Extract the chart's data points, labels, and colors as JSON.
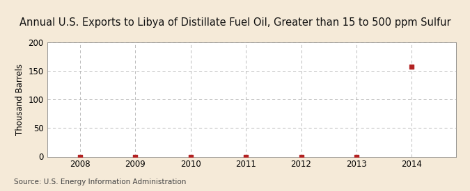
{
  "title": "Annual U.S. Exports to Libya of Distillate Fuel Oil, Greater than 15 to 500 ppm Sulfur",
  "ylabel": "Thousand Barrels",
  "source": "Source: U.S. Energy Information Administration",
  "years": [
    2008,
    2009,
    2010,
    2011,
    2012,
    2013,
    2014
  ],
  "values": [
    0,
    0,
    0,
    0,
    0,
    0,
    157
  ],
  "point_color": "#b22222",
  "ylim": [
    0,
    200
  ],
  "yticks": [
    0,
    50,
    100,
    150,
    200
  ],
  "xlim": [
    2007.4,
    2014.8
  ],
  "bg_color": "#f5ead8",
  "plot_bg_color": "#ffffff",
  "grid_color": "#b0b0b0",
  "title_fontsize": 10.5,
  "label_fontsize": 8.5,
  "tick_fontsize": 8.5,
  "source_fontsize": 7.5,
  "marker_size": 4
}
